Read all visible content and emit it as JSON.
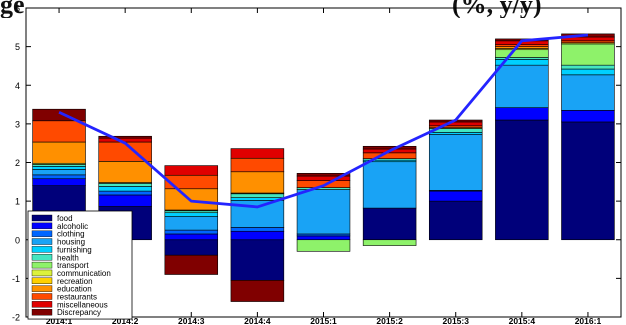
{
  "title_fragments": {
    "left": "ge",
    "right": "(%, y/y)"
  },
  "colors": {
    "food": "#00007a",
    "alcoholic": "#0000ff",
    "clothing": "#0066ff",
    "housing": "#19a3f5",
    "furnishing": "#00d0ff",
    "health": "#44e6c0",
    "transport": "#8ef26a",
    "communication": "#dcf23c",
    "recreation": "#ffd000",
    "education": "#ff9000",
    "restaurants": "#ff4a00",
    "miscellaneous": "#e00000",
    "discrepancy": "#800000",
    "line": "#2424ff"
  },
  "chart_data": {
    "type": "bar",
    "stacked": true,
    "categories": [
      "2014:1",
      "2014:2",
      "2014:3",
      "2014:4",
      "2015:1",
      "2015:2",
      "2015:3",
      "2015:4",
      "2016:1"
    ],
    "ylim": [
      -2,
      6
    ],
    "yticks": [
      -2,
      -1,
      0,
      1,
      2,
      3,
      4,
      5,
      6
    ],
    "grid": false,
    "legend_position": "bottom-left",
    "series": [
      {
        "name": "food",
        "key": "food",
        "values": [
          1.4,
          0.86,
          -0.4,
          -1.05,
          0.0,
          0.82,
          1.0,
          3.1,
          3.05
        ]
      },
      {
        "name": "alcoholic",
        "key": "alcoholic",
        "values": [
          0.18,
          0.3,
          0.15,
          0.22,
          0.1,
          0.0,
          0.26,
          0.32,
          0.3
        ]
      },
      {
        "name": "clothing",
        "key": "clothing",
        "values": [
          0.1,
          0.1,
          0.1,
          0.1,
          0.05,
          0.0,
          0.02,
          0.0,
          0.0
        ]
      },
      {
        "name": "housing",
        "key": "housing",
        "values": [
          0.14,
          0.0,
          0.35,
          0.7,
          1.15,
          1.2,
          1.45,
          1.1,
          0.92
        ]
      },
      {
        "name": "furnishing",
        "key": "furnishing",
        "values": [
          0.08,
          0.12,
          0.1,
          0.07,
          0.0,
          0.04,
          0.05,
          0.15,
          0.15
        ]
      },
      {
        "name": "health",
        "key": "health",
        "values": [
          0.05,
          0.08,
          0.05,
          0.1,
          0.05,
          0.04,
          0.1,
          0.05,
          0.1
        ]
      },
      {
        "name": "transport",
        "key": "transport",
        "values": [
          0.0,
          0.0,
          0.0,
          0.0,
          -0.3,
          -0.15,
          0.0,
          0.2,
          0.55
        ]
      },
      {
        "name": "communication",
        "key": "communication",
        "values": [
          0.03,
          0.02,
          0.02,
          0.02,
          0.0,
          0.0,
          0.02,
          0.03,
          0.03
        ]
      },
      {
        "name": "recreation",
        "key": "recreation",
        "values": [
          0.0,
          0.0,
          0.0,
          0.0,
          0.0,
          0.0,
          0.0,
          0.0,
          0.0
        ]
      },
      {
        "name": "education",
        "key": "education",
        "values": [
          0.55,
          0.55,
          0.55,
          0.55,
          0.0,
          0.0,
          0.0,
          0.05,
          0.0
        ]
      },
      {
        "name": "restaurants",
        "key": "restaurants",
        "values": [
          0.55,
          0.5,
          0.35,
          0.35,
          0.18,
          0.15,
          0.05,
          0.05,
          0.05
        ]
      },
      {
        "name": "miscellaneous",
        "key": "miscellaneous",
        "values": [
          0.0,
          0.1,
          0.25,
          0.25,
          0.12,
          0.1,
          0.1,
          0.1,
          0.1
        ]
      },
      {
        "name": "Discrepancy",
        "key": "discrepancy",
        "values": [
          0.3,
          0.05,
          -0.5,
          -0.55,
          0.07,
          0.07,
          0.05,
          0.05,
          0.08
        ]
      }
    ],
    "line": {
      "values": [
        3.3,
        2.5,
        1.0,
        0.85,
        1.4,
        2.3,
        3.1,
        5.15,
        5.3
      ]
    }
  }
}
